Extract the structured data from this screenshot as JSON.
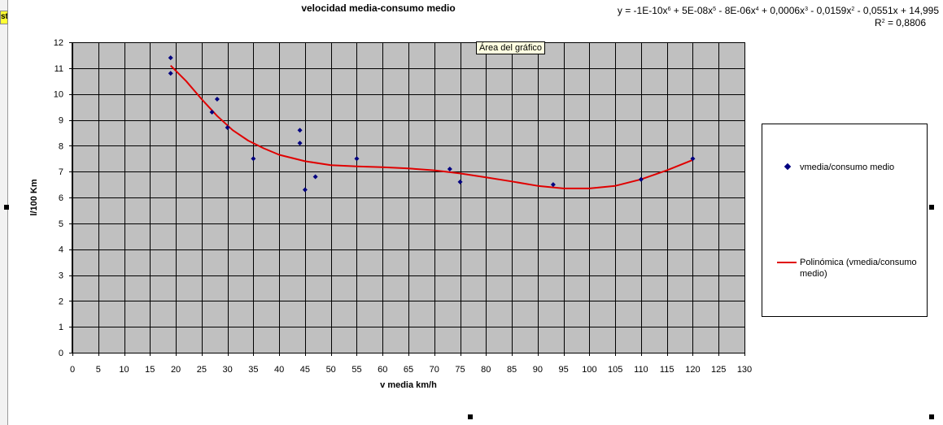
{
  "corner_tag": "st",
  "tooltip": "Área del gráfico",
  "equation": {
    "y_prefix": "y = -1E-10x",
    "e1": "6",
    "t2": " + 5E-08x",
    "e2": "5",
    "t3": " - 8E-06x",
    "e3": "4",
    "t4": " + 0,0006x",
    "e4": "3",
    "t5": " - 0,0159x",
    "e5": "2",
    "t6": " - 0,0551x + 14,995",
    "r2_prefix": "R",
    "r2_exp": "2",
    "r2_value": " = 0,8806"
  },
  "legend": {
    "points_label": "vmedia/consumo medio",
    "trend_label": "Polinómica (vmedia/consumo medio)"
  },
  "colors": {
    "plot_bg": "#c0c0c0",
    "grid": "#000000",
    "points": "#000080",
    "trend": "#e00000"
  },
  "chart_data": {
    "type": "scatter",
    "title": "velocidad media-consumo medio",
    "xlabel": "v media km/h",
    "ylabel": "l/100 Km",
    "xlim": [
      0,
      130
    ],
    "ylim": [
      0,
      12
    ],
    "x_step": 5,
    "y_step": 1,
    "grid": true,
    "legend_position": "right",
    "x_ticks": [
      "0",
      "5",
      "10",
      "15",
      "20",
      "25",
      "30",
      "35",
      "40",
      "45",
      "50",
      "55",
      "60",
      "65",
      "70",
      "75",
      "80",
      "85",
      "90",
      "95",
      "100",
      "105",
      "110",
      "115",
      "120",
      "125",
      "130"
    ],
    "y_ticks": [
      "0",
      "1",
      "2",
      "3",
      "4",
      "5",
      "6",
      "7",
      "8",
      "9",
      "10",
      "11",
      "12"
    ],
    "series": [
      {
        "name": "vmedia/consumo medio",
        "kind": "points",
        "points": [
          {
            "x": 19,
            "y": 11.4
          },
          {
            "x": 19,
            "y": 10.8
          },
          {
            "x": 27,
            "y": 9.3
          },
          {
            "x": 28,
            "y": 9.8
          },
          {
            "x": 30,
            "y": 8.7
          },
          {
            "x": 35,
            "y": 7.5
          },
          {
            "x": 44,
            "y": 8.6
          },
          {
            "x": 44,
            "y": 8.1
          },
          {
            "x": 45,
            "y": 6.3
          },
          {
            "x": 47,
            "y": 6.8
          },
          {
            "x": 55,
            "y": 7.5
          },
          {
            "x": 73,
            "y": 7.1
          },
          {
            "x": 75,
            "y": 6.6
          },
          {
            "x": 93,
            "y": 6.5
          },
          {
            "x": 110,
            "y": 6.7
          },
          {
            "x": 120,
            "y": 7.5
          }
        ]
      },
      {
        "name": "Polinómica (vmedia/consumo medio)",
        "kind": "trendline",
        "points": [
          {
            "x": 19,
            "y": 11.1
          },
          {
            "x": 22,
            "y": 10.5
          },
          {
            "x": 25,
            "y": 9.8
          },
          {
            "x": 28,
            "y": 9.15
          },
          {
            "x": 31,
            "y": 8.6
          },
          {
            "x": 34,
            "y": 8.2
          },
          {
            "x": 37,
            "y": 7.9
          },
          {
            "x": 40,
            "y": 7.65
          },
          {
            "x": 45,
            "y": 7.4
          },
          {
            "x": 50,
            "y": 7.25
          },
          {
            "x": 55,
            "y": 7.2
          },
          {
            "x": 60,
            "y": 7.17
          },
          {
            "x": 65,
            "y": 7.12
          },
          {
            "x": 70,
            "y": 7.05
          },
          {
            "x": 75,
            "y": 6.93
          },
          {
            "x": 80,
            "y": 6.78
          },
          {
            "x": 85,
            "y": 6.62
          },
          {
            "x": 90,
            "y": 6.45
          },
          {
            "x": 95,
            "y": 6.35
          },
          {
            "x": 100,
            "y": 6.35
          },
          {
            "x": 105,
            "y": 6.45
          },
          {
            "x": 110,
            "y": 6.7
          },
          {
            "x": 115,
            "y": 7.05
          },
          {
            "x": 120,
            "y": 7.45
          }
        ]
      }
    ]
  }
}
